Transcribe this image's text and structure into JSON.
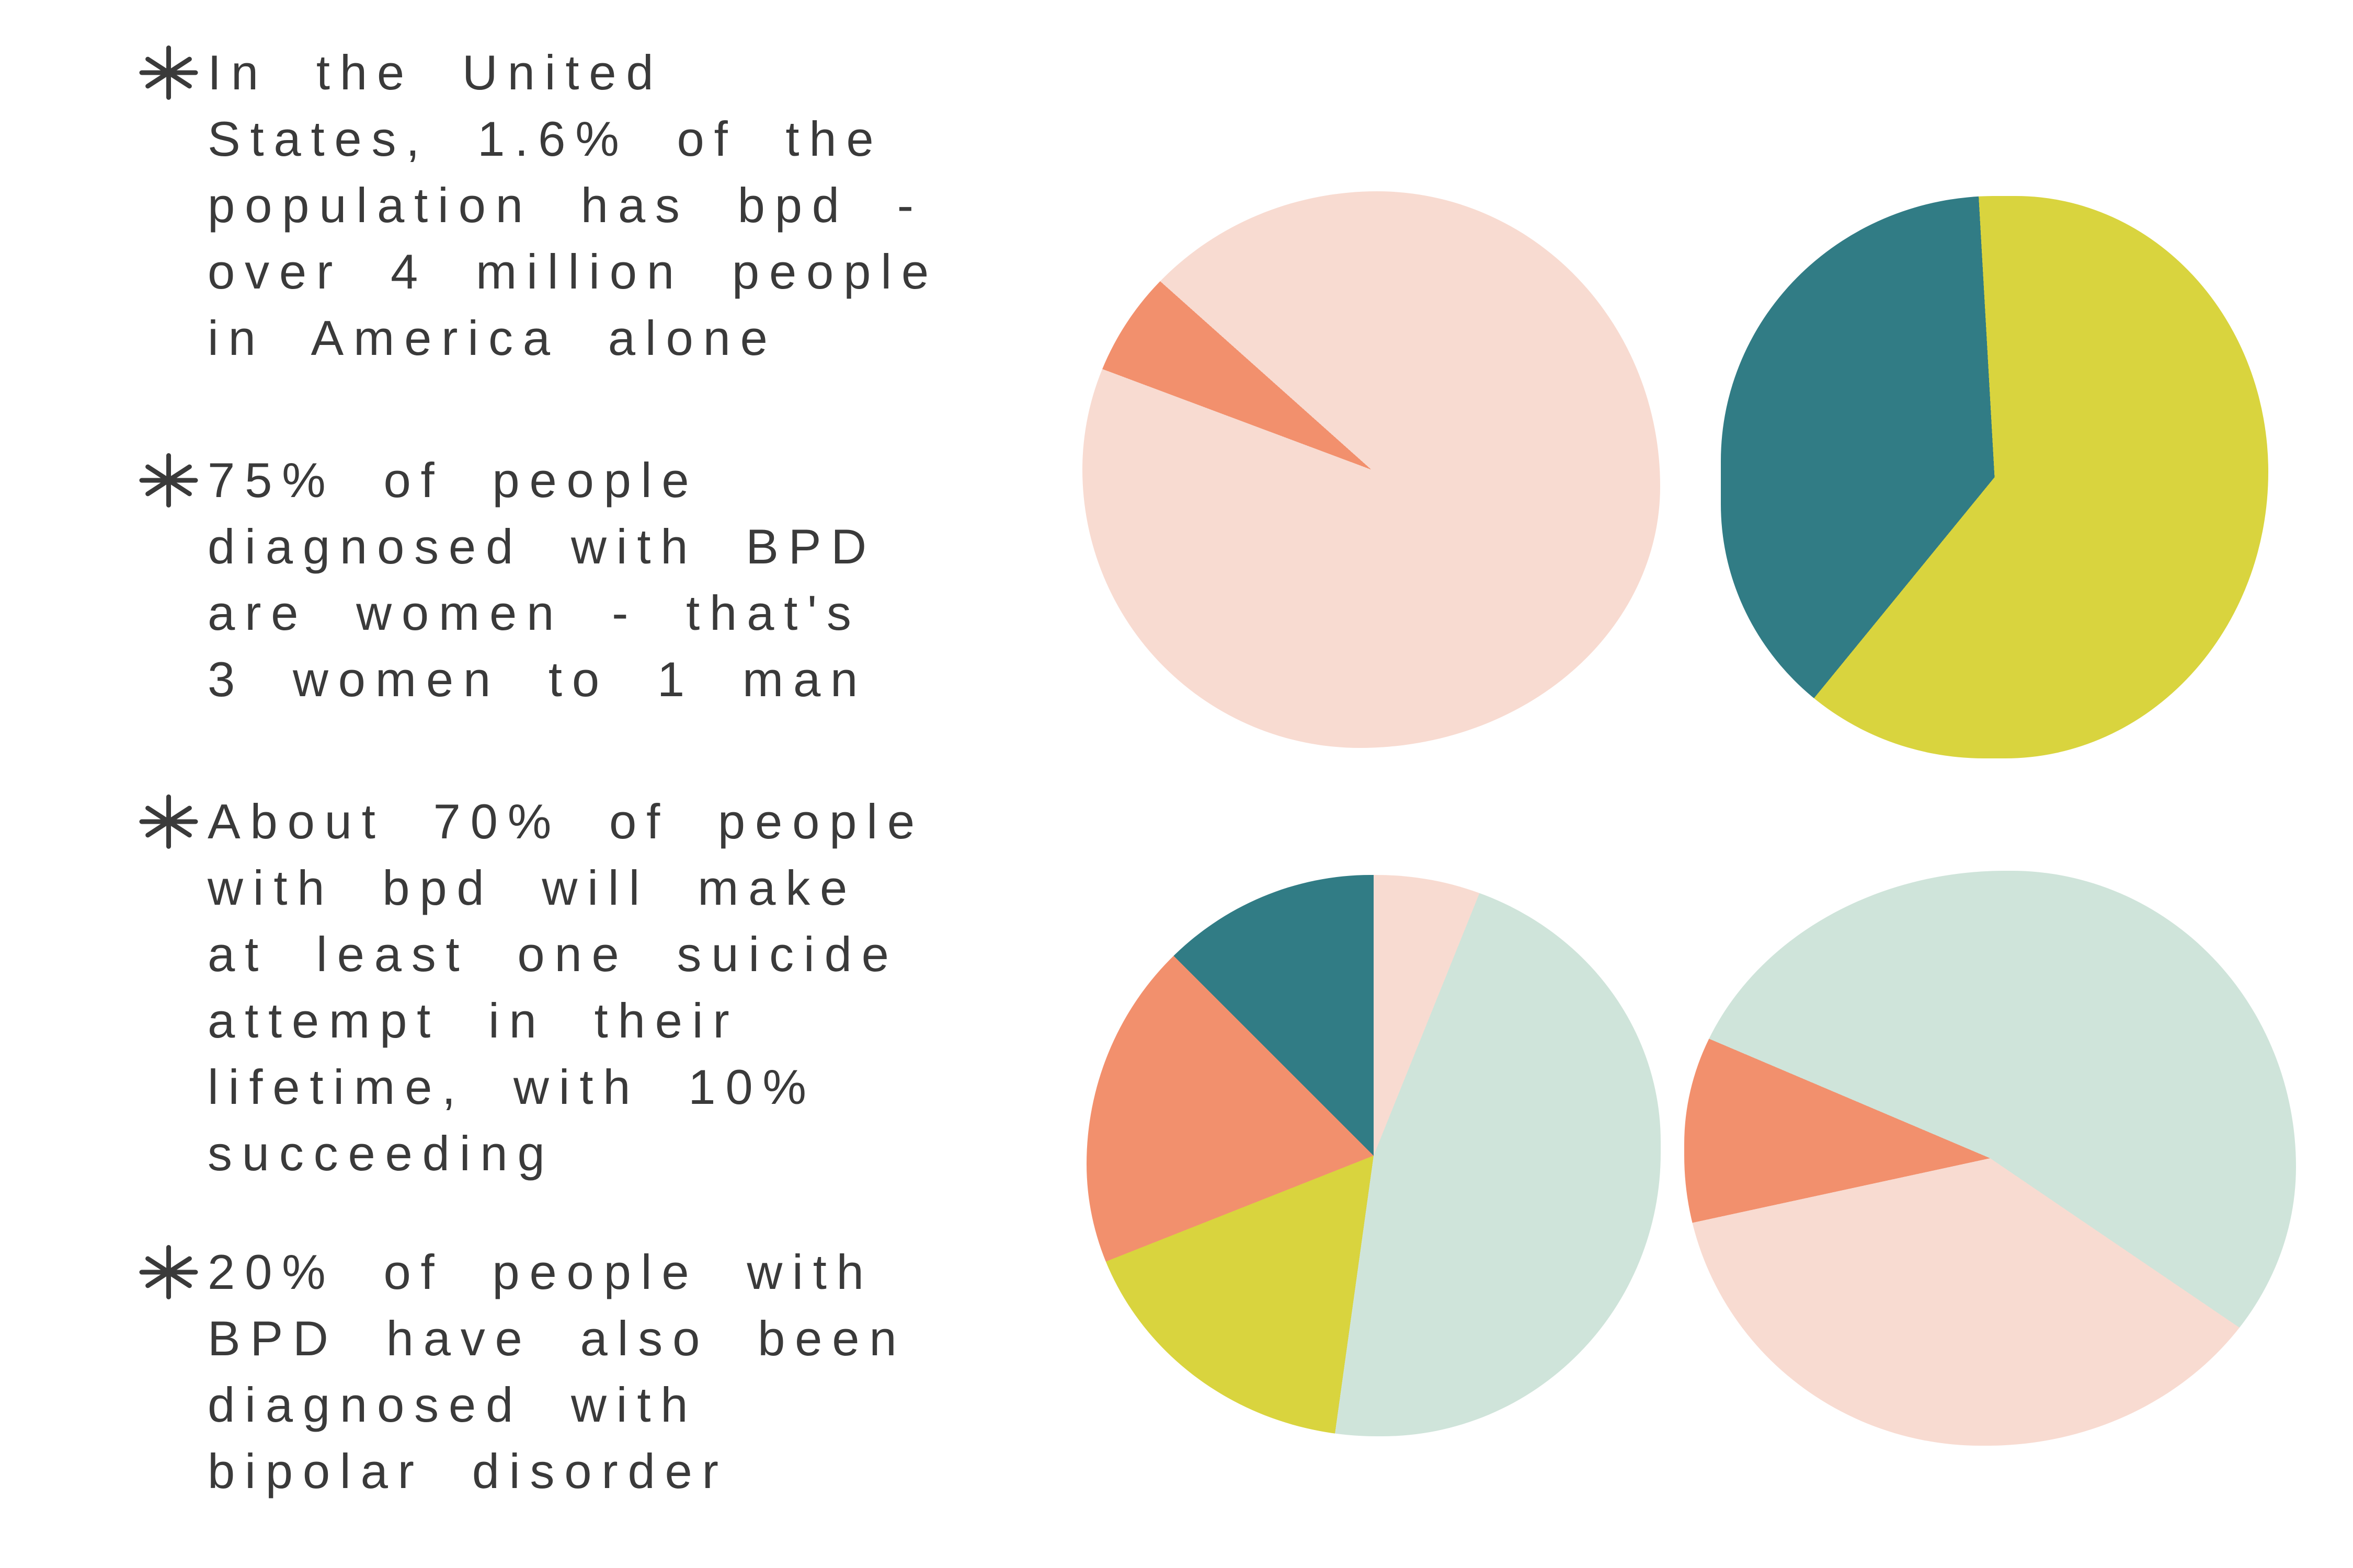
{
  "page": {
    "background": "#ffffff",
    "text_color": "#3a3a3a"
  },
  "notes": {
    "bullet_icon_name": "asterisk-star",
    "items": [
      {
        "text": "In the United\nStates, 1.6% of the\npopulation has bpd -\nover 4 million people\nin America alone"
      },
      {
        "text": "75% of people\ndiagnosed with BPD\nare women - that's\n3 women to 1 man"
      },
      {
        "text": "About 70% of people\nwith bpd will make\nat least one suicide\nattempt in their\nlifetime, with 10%\nsucceeding"
      },
      {
        "text": "20% of people with\nBPD have also been\ndiagnosed with\nbipolar disorder"
      }
    ]
  },
  "palette": {
    "pale_pink": "#F8DBD1",
    "salmon": "#F2906D",
    "teal": "#317C85",
    "chartreuse": "#D9D43E",
    "mint": "#CFE4DA"
  },
  "chart_data": [
    {
      "type": "pie",
      "name": "pie-top-left",
      "legend": "none",
      "segments": [
        {
          "color_name": "pale_pink",
          "color": "#F8DBD1",
          "percent": 80.7
        },
        {
          "color_name": "salmon",
          "color": "#F2906D",
          "percent": 5.9
        },
        {
          "color_name": "pale_pink",
          "color": "#F8DBD1",
          "percent": 13.4
        }
      ]
    },
    {
      "type": "pie",
      "name": "pie-top-right",
      "legend": "none",
      "segments": [
        {
          "color_name": "chartreuse",
          "color": "#D9D43E",
          "percent": 60.9
        },
        {
          "color_name": "teal",
          "color": "#317C85",
          "percent": 38.2
        },
        {
          "color_name": "chartreuse",
          "color": "#D9D43E",
          "percent": 0.9
        }
      ]
    },
    {
      "type": "pie",
      "name": "pie-bottom-left",
      "legend": "none",
      "segments": [
        {
          "color_name": "pale_pink",
          "color": "#F8DBD1",
          "percent": 6.1
        },
        {
          "color_name": "mint",
          "color": "#CFE4DA",
          "percent": 46.1
        },
        {
          "color_name": "chartreuse",
          "color": "#D9D43E",
          "percent": 16.8
        },
        {
          "color_name": "salmon",
          "color": "#F2906D",
          "percent": 18.5
        },
        {
          "color_name": "teal",
          "color": "#317C85",
          "percent": 12.5
        }
      ]
    },
    {
      "type": "pie",
      "name": "pie-bottom-right",
      "legend": "none",
      "segments": [
        {
          "color_name": "mint",
          "color": "#CFE4DA",
          "percent": 34.5
        },
        {
          "color_name": "pale_pink",
          "color": "#F8DBD1",
          "percent": 37.1
        },
        {
          "color_name": "salmon",
          "color": "#F2906D",
          "percent": 9.8
        },
        {
          "color_name": "mint",
          "color": "#CFE4DA",
          "percent": 18.6
        }
      ]
    }
  ]
}
